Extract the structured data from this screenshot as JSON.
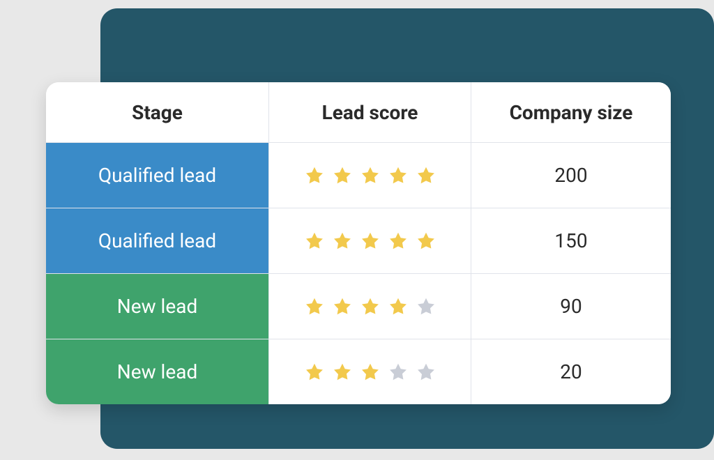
{
  "colors": {
    "page_bg": "#e8e8e8",
    "backdrop": "#245668",
    "card_bg": "#ffffff",
    "grid_line": "#e0e3ea",
    "header_text": "#2a2a2a",
    "cell_text": "#2a2a2a",
    "stage_text": "#ffffff",
    "star_filled": "#f2c94c",
    "star_empty": "#c9cdd6",
    "stage_qualified": "#3a8bc8",
    "stage_new": "#3fa36c"
  },
  "table": {
    "type": "table",
    "columns": [
      "Stage",
      "Lead score",
      "Company size"
    ],
    "max_stars": 5,
    "rows": [
      {
        "stage": "Qualified lead",
        "stage_kind": "qualified",
        "score": 5,
        "company_size": "200"
      },
      {
        "stage": "Qualified lead",
        "stage_kind": "qualified",
        "score": 5,
        "company_size": "150"
      },
      {
        "stage": "New lead",
        "stage_kind": "new",
        "score": 4,
        "company_size": "90"
      },
      {
        "stage": "New lead",
        "stage_kind": "new",
        "score": 3,
        "company_size": "20"
      }
    ]
  }
}
